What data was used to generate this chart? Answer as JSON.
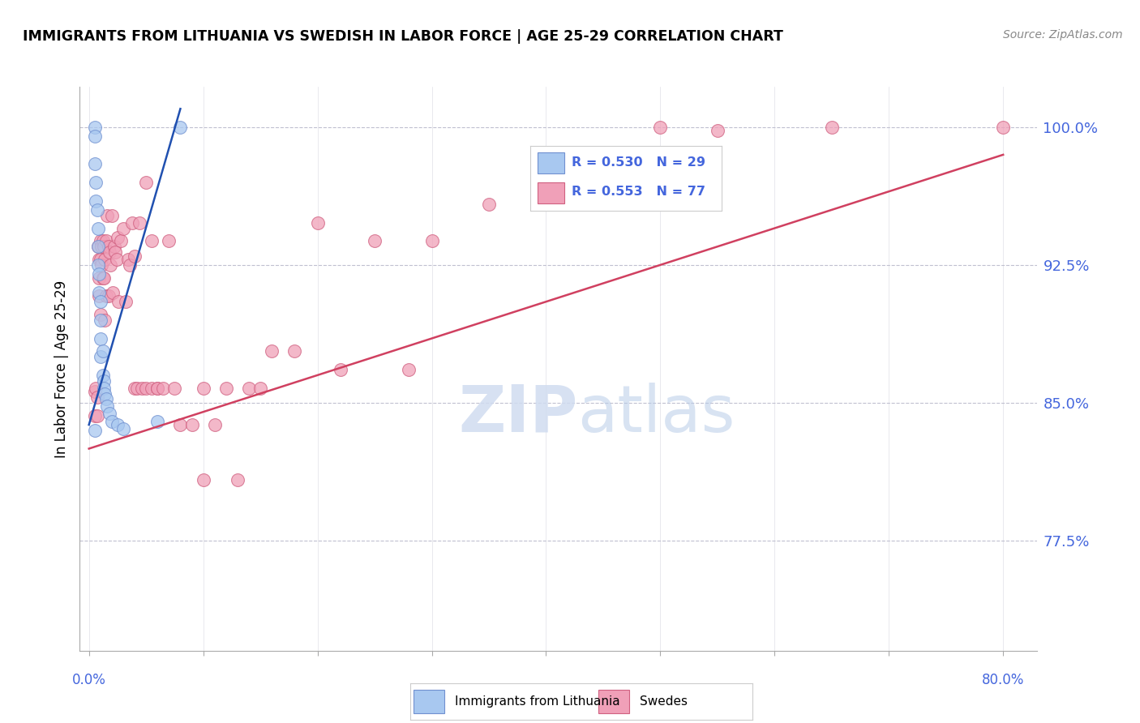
{
  "title": "IMMIGRANTS FROM LITHUANIA VS SWEDISH IN LABOR FORCE | AGE 25-29 CORRELATION CHART",
  "source": "Source: ZipAtlas.com",
  "ylabel": "In Labor Force | Age 25-29",
  "ytick_values": [
    1.0,
    0.925,
    0.85,
    0.775
  ],
  "ymin": 0.715,
  "ymax": 1.022,
  "xmin": -0.008,
  "xmax": 0.83,
  "legend_blue_r": "R = 0.530",
  "legend_blue_n": "N = 29",
  "legend_pink_r": "R = 0.553",
  "legend_pink_n": "N = 77",
  "blue_color": "#A8C8F0",
  "pink_color": "#F0A0B8",
  "blue_edge_color": "#7090D0",
  "pink_edge_color": "#D06080",
  "blue_line_color": "#2050B0",
  "pink_line_color": "#D04060",
  "watermark_zip": "ZIP",
  "watermark_atlas": "atlas",
  "blue_scatter_x": [
    0.005,
    0.005,
    0.005,
    0.005,
    0.006,
    0.006,
    0.007,
    0.008,
    0.008,
    0.008,
    0.009,
    0.009,
    0.01,
    0.01,
    0.01,
    0.01,
    0.012,
    0.012,
    0.013,
    0.013,
    0.014,
    0.015,
    0.016,
    0.018,
    0.02,
    0.025,
    0.03,
    0.06,
    0.08
  ],
  "blue_scatter_y": [
    1.0,
    0.995,
    0.98,
    0.835,
    0.97,
    0.96,
    0.955,
    0.945,
    0.935,
    0.925,
    0.92,
    0.91,
    0.905,
    0.895,
    0.885,
    0.875,
    0.878,
    0.865,
    0.862,
    0.858,
    0.855,
    0.852,
    0.848,
    0.844,
    0.84,
    0.838,
    0.836,
    0.84,
    1.0
  ],
  "pink_scatter_x": [
    0.005,
    0.005,
    0.006,
    0.007,
    0.007,
    0.008,
    0.009,
    0.009,
    0.009,
    0.01,
    0.01,
    0.01,
    0.011,
    0.011,
    0.012,
    0.012,
    0.013,
    0.013,
    0.014,
    0.014,
    0.015,
    0.015,
    0.016,
    0.017,
    0.017,
    0.018,
    0.019,
    0.02,
    0.021,
    0.022,
    0.023,
    0.024,
    0.025,
    0.026,
    0.028,
    0.03,
    0.032,
    0.034,
    0.036,
    0.038,
    0.04,
    0.04,
    0.042,
    0.044,
    0.046,
    0.05,
    0.05,
    0.055,
    0.055,
    0.06,
    0.06,
    0.065,
    0.07,
    0.075,
    0.08,
    0.09,
    0.1,
    0.1,
    0.11,
    0.12,
    0.13,
    0.14,
    0.15,
    0.16,
    0.18,
    0.2,
    0.22,
    0.25,
    0.28,
    0.3,
    0.35,
    0.4,
    0.45,
    0.5,
    0.55,
    0.65,
    0.8
  ],
  "pink_scatter_y": [
    0.856,
    0.843,
    0.858,
    0.853,
    0.843,
    0.935,
    0.928,
    0.918,
    0.908,
    0.938,
    0.928,
    0.898,
    0.935,
    0.925,
    0.938,
    0.918,
    0.935,
    0.918,
    0.928,
    0.895,
    0.938,
    0.908,
    0.952,
    0.935,
    0.908,
    0.932,
    0.925,
    0.952,
    0.91,
    0.935,
    0.932,
    0.928,
    0.94,
    0.905,
    0.938,
    0.945,
    0.905,
    0.928,
    0.925,
    0.948,
    0.93,
    0.858,
    0.858,
    0.948,
    0.858,
    0.97,
    0.858,
    0.858,
    0.938,
    0.858,
    0.858,
    0.858,
    0.938,
    0.858,
    0.838,
    0.838,
    0.858,
    0.808,
    0.838,
    0.858,
    0.808,
    0.858,
    0.858,
    0.878,
    0.878,
    0.948,
    0.868,
    0.938,
    0.868,
    0.938,
    0.958,
    0.968,
    0.978,
    1.0,
    0.998,
    1.0,
    1.0
  ],
  "blue_line_x": [
    0.0,
    0.08
  ],
  "blue_line_y": [
    0.838,
    1.01
  ],
  "pink_line_x": [
    0.0,
    0.8
  ],
  "pink_line_y": [
    0.825,
    0.985
  ]
}
